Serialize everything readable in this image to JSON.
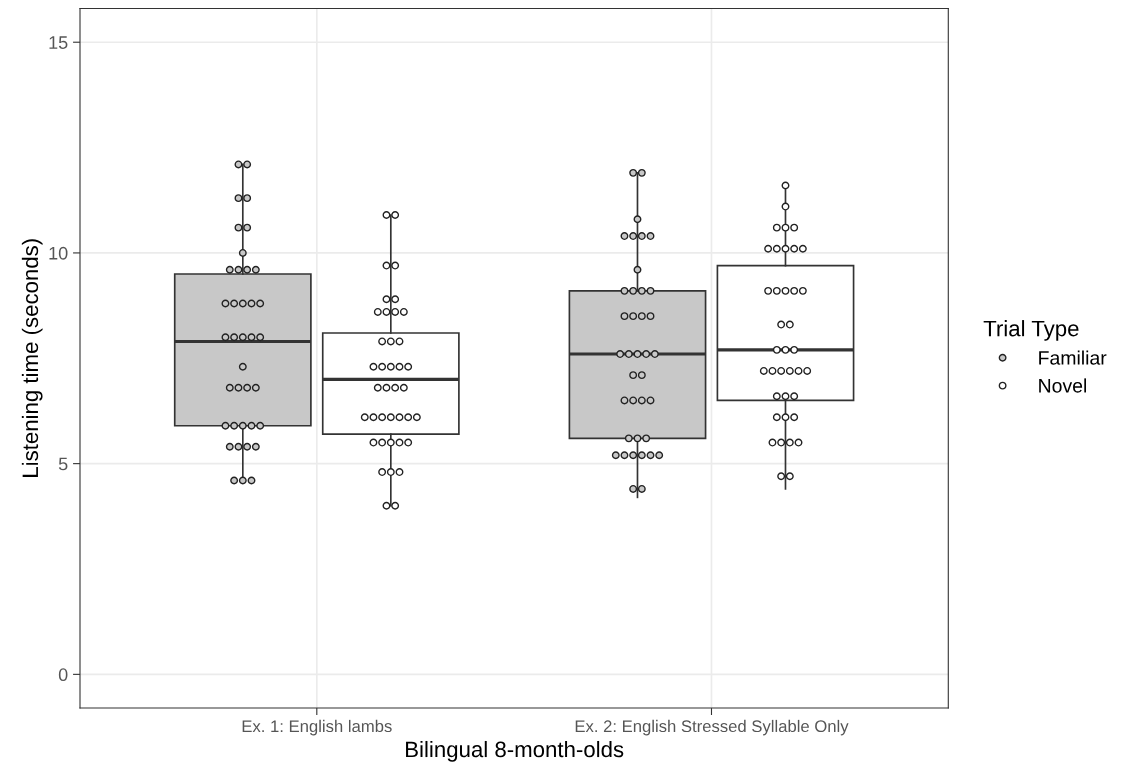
{
  "chart_data": {
    "type": "box",
    "xlabel": "Bilingual 8-month-olds",
    "ylabel": "Listening time (seconds)",
    "legend_title": "Trial Type",
    "categories": [
      "Ex. 1: English lambs",
      "Ex. 2: English Stressed Syllable Only"
    ],
    "ylim": [
      -0.8,
      15.8
    ],
    "yticks": [
      0,
      5,
      10,
      15
    ],
    "grid": true,
    "legend": "right",
    "series": [
      {
        "color": "#c8c8c8",
        "boxes": [
          {
            "low": 4.6,
            "q1": 5.9,
            "median": 7.9,
            "q3": 9.5,
            "high": 12.1
          },
          {
            "low": 4.2,
            "q1": 5.6,
            "median": 7.6,
            "q3": 9.1,
            "high": 11.9
          }
        ]
      },
      {
        "color": "#ffffff",
        "boxes": [
          {
            "low": 4.0,
            "q1": 5.7,
            "median": 7.0,
            "q3": 8.1,
            "high": 10.9
          },
          {
            "low": 4.4,
            "q1": 6.5,
            "median": 7.7,
            "q3": 9.7,
            "high": 11.6
          }
        ]
      },
      {
        "type": "scatter",
        "name": "Familiar",
        "color": "#c8c8c8",
        "x": [
          "Ex. 1: English lambs",
          "Ex. 1: English lambs",
          "Ex. 1: English lambs",
          "Ex. 1: English lambs",
          "Ex. 1: English lambs",
          "Ex. 1: English lambs",
          "Ex. 1: English lambs",
          "Ex. 1: English lambs",
          "Ex. 1: English lambs",
          "Ex. 1: English lambs",
          "Ex. 1: English lambs",
          "Ex. 1: English lambs",
          "Ex. 1: English lambs",
          "Ex. 1: English lambs",
          "Ex. 1: English lambs",
          "Ex. 1: English lambs",
          "Ex. 1: English lambs",
          "Ex. 1: English lambs",
          "Ex. 1: English lambs",
          "Ex. 1: English lambs",
          "Ex. 1: English lambs",
          "Ex. 1: English lambs",
          "Ex. 1: English lambs",
          "Ex. 1: English lambs",
          "Ex. 1: English lambs",
          "Ex. 1: English lambs",
          "Ex. 1: English lambs",
          "Ex. 1: English lambs",
          "Ex. 1: English lambs",
          "Ex. 1: English lambs",
          "Ex. 1: English lambs",
          "Ex. 1: English lambs",
          "Ex. 1: English lambs",
          "Ex. 1: English lambs",
          "Ex. 1: English lambs",
          "Ex. 1: English lambs",
          "Ex. 1: English lambs",
          "Ex. 1: English lambs",
          "Ex. 2: English Stressed Syllable Only",
          "Ex. 2: English Stressed Syllable Only",
          "Ex. 2: English Stressed Syllable Only",
          "Ex. 2: English Stressed Syllable Only",
          "Ex. 2: English Stressed Syllable Only",
          "Ex. 2: English Stressed Syllable Only",
          "Ex. 2: English Stressed Syllable Only",
          "Ex. 2: English Stressed Syllable Only",
          "Ex. 2: English Stressed Syllable Only",
          "Ex. 2: English Stressed Syllable Only",
          "Ex. 2: English Stressed Syllable Only",
          "Ex. 2: English Stressed Syllable Only",
          "Ex. 2: English Stressed Syllable Only",
          "Ex. 2: English Stressed Syllable Only",
          "Ex. 2: English Stressed Syllable Only",
          "Ex. 2: English Stressed Syllable Only",
          "Ex. 2: English Stressed Syllable Only",
          "Ex. 2: English Stressed Syllable Only",
          "Ex. 2: English Stressed Syllable Only",
          "Ex. 2: English Stressed Syllable Only",
          "Ex. 2: English Stressed Syllable Only",
          "Ex. 2: English Stressed Syllable Only",
          "Ex. 2: English Stressed Syllable Only",
          "Ex. 2: English Stressed Syllable Only",
          "Ex. 2: English Stressed Syllable Only",
          "Ex. 2: English Stressed Syllable Only",
          "Ex. 2: English Stressed Syllable Only",
          "Ex. 2: English Stressed Syllable Only",
          "Ex. 2: English Stressed Syllable Only",
          "Ex. 2: English Stressed Syllable Only",
          "Ex. 2: English Stressed Syllable Only",
          "Ex. 2: English Stressed Syllable Only",
          "Ex. 2: English Stressed Syllable Only",
          "Ex. 2: English Stressed Syllable Only",
          "Ex. 2: English Stressed Syllable Only",
          "Ex. 2: English Stressed Syllable Only",
          "Ex. 2: English Stressed Syllable Only",
          "Ex. 2: English Stressed Syllable Only"
        ],
        "values": [
          12.1,
          12.1,
          11.3,
          11.3,
          10.6,
          10.6,
          10.0,
          9.6,
          9.6,
          9.6,
          9.6,
          8.8,
          8.8,
          8.8,
          8.8,
          8.8,
          8.0,
          8.0,
          8.0,
          8.0,
          8.0,
          7.3,
          6.8,
          6.8,
          6.8,
          6.8,
          5.9,
          5.9,
          5.9,
          5.9,
          5.9,
          5.4,
          5.4,
          5.4,
          5.4,
          4.6,
          4.6,
          4.6,
          11.9,
          11.9,
          10.8,
          10.4,
          10.4,
          10.4,
          10.4,
          9.6,
          9.1,
          9.1,
          9.1,
          9.1,
          8.5,
          8.5,
          8.5,
          8.5,
          7.6,
          7.6,
          7.6,
          7.6,
          7.6,
          7.1,
          7.1,
          6.5,
          6.5,
          6.5,
          6.5,
          5.6,
          5.6,
          5.6,
          5.2,
          5.2,
          5.2,
          5.2,
          5.2,
          5.2,
          4.4,
          4.4
        ]
      },
      {
        "type": "scatter",
        "name": "Novel",
        "color": "#ffffff",
        "x": [
          "Ex. 1: English lambs",
          "Ex. 1: English lambs",
          "Ex. 1: English lambs",
          "Ex. 1: English lambs",
          "Ex. 1: English lambs",
          "Ex. 1: English lambs",
          "Ex. 1: English lambs",
          "Ex. 1: English lambs",
          "Ex. 1: English lambs",
          "Ex. 1: English lambs",
          "Ex. 1: English lambs",
          "Ex. 1: English lambs",
          "Ex. 1: English lambs",
          "Ex. 1: English lambs",
          "Ex. 1: English lambs",
          "Ex. 1: English lambs",
          "Ex. 1: English lambs",
          "Ex. 1: English lambs",
          "Ex. 1: English lambs",
          "Ex. 1: English lambs",
          "Ex. 1: English lambs",
          "Ex. 1: English lambs",
          "Ex. 1: English lambs",
          "Ex. 1: English lambs",
          "Ex. 1: English lambs",
          "Ex. 1: English lambs",
          "Ex. 1: English lambs",
          "Ex. 1: English lambs",
          "Ex. 1: English lambs",
          "Ex. 1: English lambs",
          "Ex. 1: English lambs",
          "Ex. 1: English lambs",
          "Ex. 1: English lambs",
          "Ex. 1: English lambs",
          "Ex. 1: English lambs",
          "Ex. 1: English lambs",
          "Ex. 1: English lambs",
          "Ex. 1: English lambs",
          "Ex. 1: English lambs",
          "Ex. 2: English Stressed Syllable Only",
          "Ex. 2: English Stressed Syllable Only",
          "Ex. 2: English Stressed Syllable Only",
          "Ex. 2: English Stressed Syllable Only",
          "Ex. 2: English Stressed Syllable Only",
          "Ex. 2: English Stressed Syllable Only",
          "Ex. 2: English Stressed Syllable Only",
          "Ex. 2: English Stressed Syllable Only",
          "Ex. 2: English Stressed Syllable Only",
          "Ex. 2: English Stressed Syllable Only",
          "Ex. 2: English Stressed Syllable Only",
          "Ex. 2: English Stressed Syllable Only",
          "Ex. 2: English Stressed Syllable Only",
          "Ex. 2: English Stressed Syllable Only",
          "Ex. 2: English Stressed Syllable Only",
          "Ex. 2: English Stressed Syllable Only",
          "Ex. 2: English Stressed Syllable Only",
          "Ex. 2: English Stressed Syllable Only",
          "Ex. 2: English Stressed Syllable Only",
          "Ex. 2: English Stressed Syllable Only",
          "Ex. 2: English Stressed Syllable Only",
          "Ex. 2: English Stressed Syllable Only",
          "Ex. 2: English Stressed Syllable Only",
          "Ex. 2: English Stressed Syllable Only",
          "Ex. 2: English Stressed Syllable Only",
          "Ex. 2: English Stressed Syllable Only",
          "Ex. 2: English Stressed Syllable Only",
          "Ex. 2: English Stressed Syllable Only",
          "Ex. 2: English Stressed Syllable Only",
          "Ex. 2: English Stressed Syllable Only",
          "Ex. 2: English Stressed Syllable Only",
          "Ex. 2: English Stressed Syllable Only",
          "Ex. 2: English Stressed Syllable Only",
          "Ex. 2: English Stressed Syllable Only",
          "Ex. 2: English Stressed Syllable Only",
          "Ex. 2: English Stressed Syllable Only",
          "Ex. 2: English Stressed Syllable Only",
          "Ex. 2: English Stressed Syllable Only"
        ],
        "values": [
          10.9,
          10.9,
          9.7,
          9.7,
          8.9,
          8.9,
          8.6,
          8.6,
          8.6,
          8.6,
          7.9,
          7.9,
          7.9,
          7.3,
          7.3,
          7.3,
          7.3,
          7.3,
          6.8,
          6.8,
          6.8,
          6.8,
          6.1,
          6.1,
          6.1,
          6.1,
          6.1,
          6.1,
          6.1,
          5.5,
          5.5,
          5.5,
          5.5,
          5.5,
          4.8,
          4.8,
          4.8,
          4.0,
          4.0,
          11.6,
          11.1,
          10.6,
          10.6,
          10.6,
          10.1,
          10.1,
          10.1,
          10.1,
          10.1,
          9.1,
          9.1,
          9.1,
          9.1,
          9.1,
          8.3,
          8.3,
          7.7,
          7.7,
          7.7,
          7.2,
          7.2,
          7.2,
          7.2,
          7.2,
          7.2,
          6.6,
          6.6,
          6.6,
          6.1,
          6.1,
          6.1,
          5.5,
          5.5,
          5.5,
          5.5,
          4.7,
          4.7
        ]
      }
    ]
  }
}
